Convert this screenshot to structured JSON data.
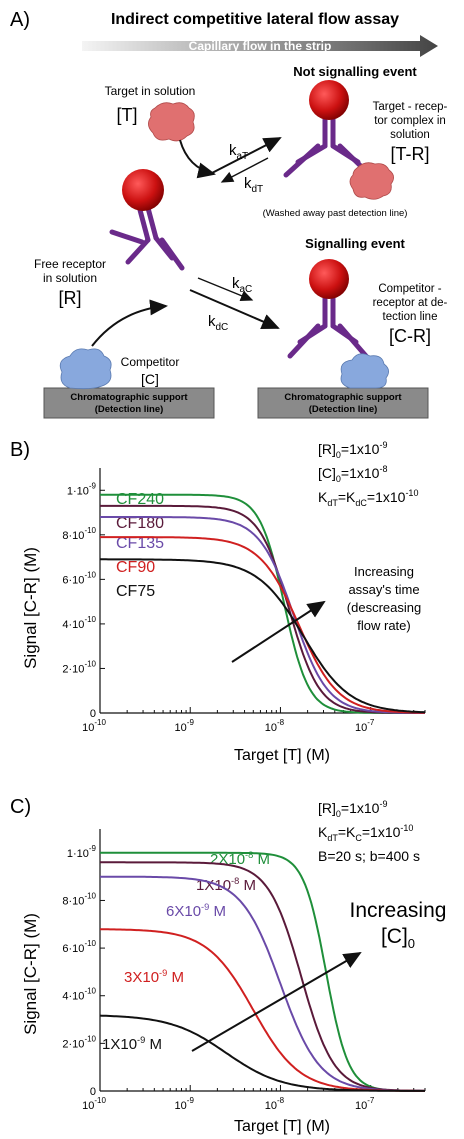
{
  "panel_a": {
    "letter": "A)",
    "title": "Indirect competitive lateral flow assay",
    "flow_label": "Capillary flow in the strip",
    "not_signalling": "Not signalling event",
    "target_line1": "Target in solution",
    "target_symbol": "[T]",
    "complex_line1": "Target - recep-",
    "complex_line2": "tor complex in",
    "complex_line3": "solution",
    "complex_symbol": "[T-R]",
    "k_aT": "k",
    "k_aT_sub": "aT",
    "k_dT": "k",
    "k_dT_sub": "dT",
    "washed": "(Washed away past detection line)",
    "signalling": "Signalling event",
    "free_line1": "Free receptor",
    "free_line2": "in solution",
    "free_symbol": "[R]",
    "k_aC": "k",
    "k_aC_sub": "aC",
    "k_dC": "k",
    "k_dC_sub": "dC",
    "comp_rec_line1": "Competitor -",
    "comp_rec_line2": "receptor at de-",
    "comp_rec_line3": "tection line",
    "comp_rec_symbol": "[C-R]",
    "competitor_line1": "Competitor",
    "competitor_symbol": "[C]",
    "support_line1": "Chromatographic support",
    "support_line2": "(Detection line)",
    "colors": {
      "antibody": "#6a2a8a",
      "bead": "#cc1111",
      "target": "#e07070",
      "competitor": "#88a8dd",
      "support": "#8a8a8a"
    }
  },
  "panel_b": {
    "letter": "B)",
    "ylabel": "Signal [C-R] (M)",
    "xlabel": "Target [T] (M)",
    "params": [
      "[R]₀=1x10⁻⁹",
      "[C]₀=1x10⁻⁸",
      "Kₑₜ=KₑC=1x10⁻¹⁰"
    ],
    "param_r": "[R]",
    "param_r_sub": "0",
    "param_r_val": "=1x10",
    "param_r_exp": "-9",
    "param_c": "[C]",
    "param_c_sub": "0",
    "param_c_val": "=1x10",
    "param_c_exp": "-8",
    "param_k1": "K",
    "param_k1_sub": "dT",
    "param_k2": "=K",
    "param_k2_sub": "dC",
    "param_k_val": "=1x10",
    "param_k_exp": "-10",
    "annotation": [
      "Increasing",
      "assay's time",
      "(descreasing",
      "flow rate)"
    ]
  },
  "panel_c": {
    "letter": "C)",
    "ylabel": "Signal [C-R] (M)",
    "xlabel": "Target [T] (M)",
    "param_r": "[R]",
    "param_r_sub": "0",
    "param_r_val": "=1x10",
    "param_r_exp": "-9",
    "param_k1": "K",
    "param_k1_sub": "dT",
    "param_k2": "=K",
    "param_k2_sub": "C",
    "param_k_val": "=1x10",
    "param_k_exp": "-10",
    "param_time": "B=20 s; b=400 s",
    "annotation_line1": "Increasing",
    "annotation_line2": "[C]",
    "annotation_sub": "0"
  },
  "chart_data": [
    {
      "type": "line",
      "xscale": "log",
      "xlim": [
        1e-10,
        4e-07
      ],
      "ylim": [
        0,
        1.1e-09
      ],
      "xlabel": "Target [T] (M)",
      "ylabel": "Signal [C-R] (M)",
      "xticks": [
        {
          "base": "10",
          "exp": "-10"
        },
        {
          "base": "10",
          "exp": "-9"
        },
        {
          "base": "10",
          "exp": "-8"
        },
        {
          "base": "10",
          "exp": "-7"
        }
      ],
      "yticks": [
        {
          "v": 0,
          "label": "0",
          "exp": ""
        },
        {
          "v": 2e-10,
          "label": "2·10",
          "exp": "-10"
        },
        {
          "v": 4e-10,
          "label": "4·10",
          "exp": "-10"
        },
        {
          "v": 6e-10,
          "label": "6·10",
          "exp": "-10"
        },
        {
          "v": 8e-10,
          "label": "8·10",
          "exp": "-10"
        },
        {
          "v": 1e-09,
          "label": "1·10",
          "exp": "-9"
        }
      ],
      "series": [
        {
          "name": "CF240",
          "color": "#1f8f3a",
          "plateau": 9.8e-10,
          "ic50": 1.1e-08,
          "hill": 3.2
        },
        {
          "name": "CF180",
          "color": "#5a1a3a",
          "plateau": 9.3e-10,
          "ic50": 1.25e-08,
          "hill": 2.6
        },
        {
          "name": "CF135",
          "color": "#6a4aa8",
          "plateau": 8.8e-10,
          "ic50": 1.4e-08,
          "hill": 2.3
        },
        {
          "name": "CF90",
          "color": "#d02020",
          "plateau": 7.9e-10,
          "ic50": 1.6e-08,
          "hill": 2.0
        },
        {
          "name": "CF75",
          "color": "#111111",
          "plateau": 6.9e-10,
          "ic50": 1.8e-08,
          "hill": 1.7
        }
      ]
    },
    {
      "type": "line",
      "xscale": "log",
      "xlim": [
        1e-10,
        4e-07
      ],
      "ylim": [
        0,
        1.1e-09
      ],
      "xlabel": "Target [T] (M)",
      "ylabel": "Signal [C-R] (M)",
      "xticks": [
        {
          "base": "10",
          "exp": "-10"
        },
        {
          "base": "10",
          "exp": "-9"
        },
        {
          "base": "10",
          "exp": "-8"
        },
        {
          "base": "10",
          "exp": "-7"
        }
      ],
      "yticks": [
        {
          "v": 0,
          "label": "0",
          "exp": ""
        },
        {
          "v": 2e-10,
          "label": "2·10",
          "exp": "-10"
        },
        {
          "v": 4e-10,
          "label": "4·10",
          "exp": "-10"
        },
        {
          "v": 6e-10,
          "label": "6·10",
          "exp": "-10"
        },
        {
          "v": 8e-10,
          "label": "8·10",
          "exp": "-10"
        },
        {
          "v": 1e-09,
          "label": "1·10",
          "exp": "-9"
        }
      ],
      "series": [
        {
          "name": "2X10⁻⁸ M",
          "label": "2X10",
          "exp": "-8",
          "unit": " M",
          "color": "#1f8f3a",
          "plateau": 1e-09,
          "ic50": 3.2e-08,
          "hill": 3.5
        },
        {
          "name": "1X10⁻⁸ M",
          "label": "1X10",
          "exp": "-8",
          "unit": " M",
          "color": "#5a1a3a",
          "plateau": 9.6e-10,
          "ic50": 1.7e-08,
          "hill": 2.4
        },
        {
          "name": "6X10⁻⁹ M",
          "label": "6X10",
          "exp": "-9",
          "unit": " M",
          "color": "#6a4aa8",
          "plateau": 9e-10,
          "ic50": 1e-08,
          "hill": 2.0
        },
        {
          "name": "3X10⁻⁹ M",
          "label": "3X10",
          "exp": "-9",
          "unit": " M",
          "color": "#d02020",
          "plateau": 6.8e-10,
          "ic50": 5e-09,
          "hill": 1.7
        },
        {
          "name": "1X10⁻⁹ M",
          "label": "1X10",
          "exp": "-9",
          "unit": " M",
          "color": "#111111",
          "plateau": 3.2e-10,
          "ic50": 2.5e-09,
          "hill": 1.4
        }
      ]
    }
  ]
}
